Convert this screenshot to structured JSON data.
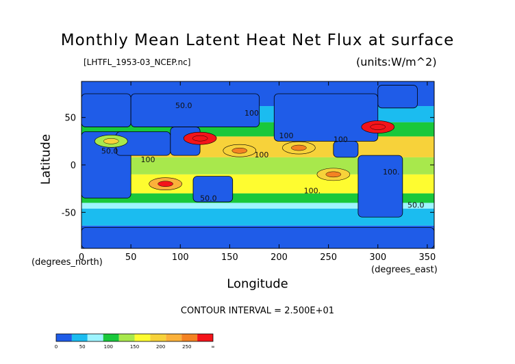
{
  "chart_data": {
    "type": "heatmap",
    "title": "Monthly Mean Latent Heat Net Flux at surface",
    "file_label": "[LHTFL_1953-03_NCEP.nc]",
    "units_label": "(units:W/m^2)",
    "xlabel": "Longitude",
    "ylabel": "Latitude",
    "x_unit_caption": "(degrees_east)",
    "y_unit_caption": "(degrees_north)",
    "xlim": [
      0,
      357
    ],
    "ylim": [
      -88,
      88
    ],
    "x_ticks": [
      0,
      50,
      100,
      150,
      200,
      250,
      300,
      350
    ],
    "y_ticks": [
      50,
      0,
      -50
    ],
    "contour_interval_text": "CONTOUR INTERVAL = 2.500E+01",
    "contour_labels": [
      "50.0",
      "100",
      "100",
      "100",
      "100",
      "50.0",
      "100.",
      "100.",
      "50.0",
      "100",
      "50.0"
    ],
    "colorbar": {
      "levels": [
        "0",
        "50",
        "100",
        "150",
        "200",
        "250",
        "∞"
      ],
      "colors": [
        "#1f5ce8",
        "#1bbcf0",
        "#9ef4ff",
        "#19c83b",
        "#a8e84c",
        "#fefc30",
        "#f7d23a",
        "#fbb13a",
        "#f48222",
        "#f4141a"
      ]
    },
    "bands": [
      {
        "lat_min": -88,
        "lat_max": -64,
        "value": 12
      },
      {
        "lat_min": -64,
        "lat_max": -46,
        "value": 35
      },
      {
        "lat_min": -46,
        "lat_max": -40,
        "value": 62
      },
      {
        "lat_min": -40,
        "lat_max": -30,
        "value": 90
      },
      {
        "lat_min": -30,
        "lat_max": -10,
        "value": 130
      },
      {
        "lat_min": -10,
        "lat_max": 8,
        "value": 110
      },
      {
        "lat_min": 8,
        "lat_max": 30,
        "value": 150
      },
      {
        "lat_min": 30,
        "lat_max": 45,
        "value": 90
      },
      {
        "lat_min": 45,
        "lat_max": 62,
        "value": 35
      },
      {
        "lat_min": 62,
        "lat_max": 88,
        "value": 12
      }
    ],
    "land": [
      {
        "name": "greenland",
        "lon_min": 300,
        "lon_max": 340,
        "lat_min": 60,
        "lat_max": 84
      },
      {
        "name": "north-america",
        "lon_min": 195,
        "lon_max": 300,
        "lat_min": 25,
        "lat_max": 75
      },
      {
        "name": "central-america",
        "lon_min": 255,
        "lon_max": 280,
        "lat_min": 8,
        "lat_max": 25
      },
      {
        "name": "south-america",
        "lon_min": 280,
        "lon_max": 325,
        "lat_min": -55,
        "lat_max": 10
      },
      {
        "name": "eurasia-west",
        "lon_min": 0,
        "lon_max": 50,
        "lat_min": 40,
        "lat_max": 75
      },
      {
        "name": "eurasia-east",
        "lon_min": 50,
        "lon_max": 180,
        "lat_min": 40,
        "lat_max": 75
      },
      {
        "name": "africa",
        "lon_min": 0,
        "lon_max": 50,
        "lat_min": -35,
        "lat_max": 35
      },
      {
        "name": "arabia-india",
        "lon_min": 35,
        "lon_max": 90,
        "lat_min": 10,
        "lat_max": 35
      },
      {
        "name": "southeast-asia",
        "lon_min": 90,
        "lon_max": 120,
        "lat_min": 10,
        "lat_max": 40
      },
      {
        "name": "australia",
        "lon_min": 113,
        "lon_max": 153,
        "lat_min": -39,
        "lat_max": -12
      },
      {
        "name": "antarctica",
        "lon_min": 0,
        "lon_max": 357,
        "lat_min": -88,
        "lat_max": -66
      }
    ],
    "hotspots": [
      {
        "lon": 120,
        "lat": 28,
        "value": 240
      },
      {
        "lon": 300,
        "lat": 40,
        "value": 265
      },
      {
        "lon": 160,
        "lat": 15,
        "value": 170
      },
      {
        "lon": 220,
        "lat": 18,
        "value": 165
      },
      {
        "lon": 85,
        "lat": -20,
        "value": 180
      },
      {
        "lon": 255,
        "lat": -10,
        "value": 170
      },
      {
        "lon": 30,
        "lat": 25,
        "value": 120
      }
    ]
  }
}
